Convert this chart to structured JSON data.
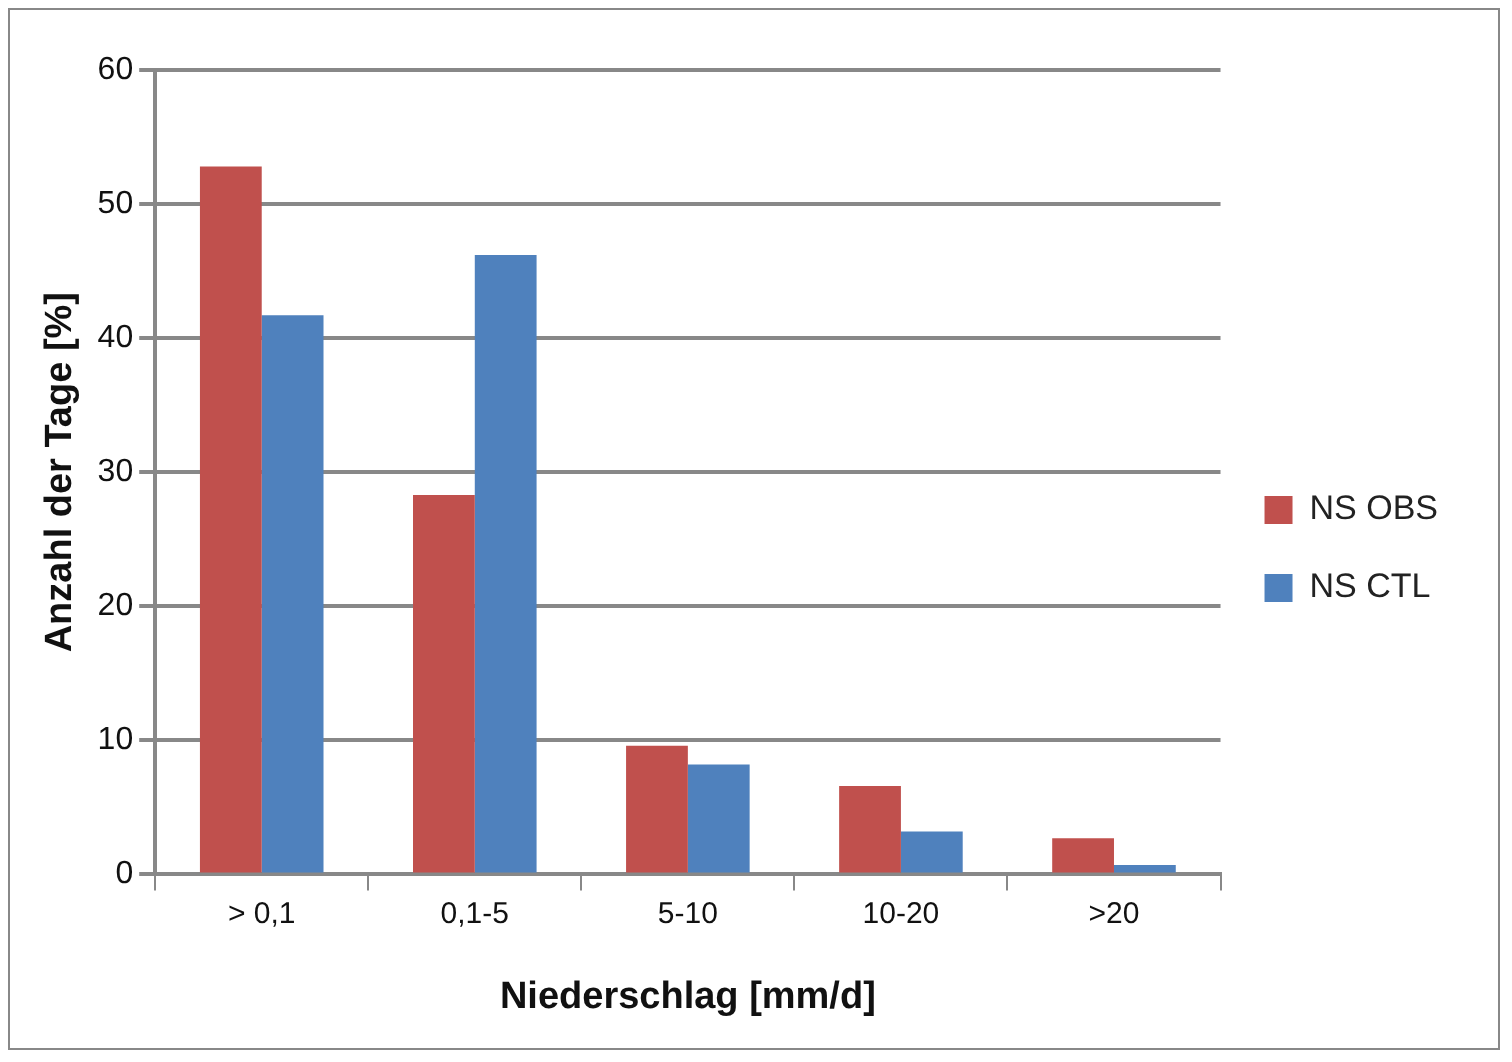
{
  "chart_data": {
    "type": "bar",
    "xlabel": "Niederschlag [mm/d]",
    "ylabel": "Anzahl der Tage [%]",
    "categories": [
      "> 0,1",
      "0,1-5",
      "5-10",
      "10-20",
      ">20"
    ],
    "series": [
      {
        "name": "NS OBS",
        "color": "#c0504d",
        "values": [
          52.8,
          28.3,
          9.6,
          6.6,
          2.7
        ]
      },
      {
        "name": "NS CTL",
        "color": "#4f81bd",
        "values": [
          41.7,
          46.2,
          8.2,
          3.2,
          0.7
        ]
      }
    ],
    "ylim": [
      0,
      60
    ],
    "yticks": [
      0,
      10,
      20,
      30,
      40,
      50,
      60
    ],
    "grid": "y",
    "legend": "right"
  }
}
